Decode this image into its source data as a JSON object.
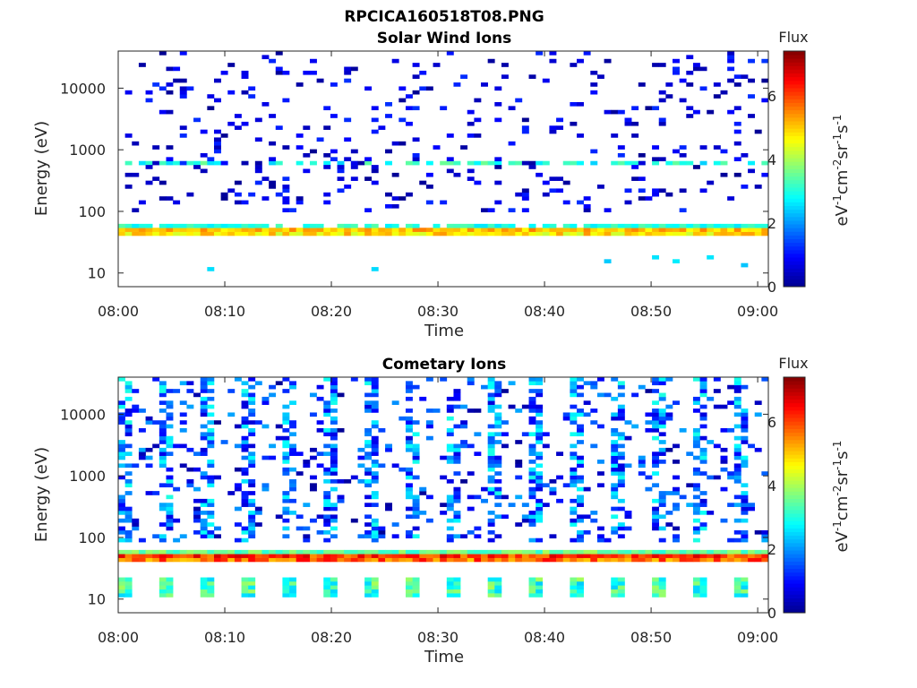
{
  "figure_title": "RPCICA160518T08.PNG",
  "colors": {
    "colormap": [
      "#00008f",
      "#0000ff",
      "#0080ff",
      "#00ffff",
      "#80ff80",
      "#ffff00",
      "#ff8000",
      "#ff0000",
      "#800000"
    ],
    "axis": "#262626",
    "background": "#ffffff"
  },
  "chart_data": [
    {
      "type": "heatmap",
      "title": "Solar Wind Ions",
      "xlabel": "Time",
      "ylabel": "Energy (eV)",
      "x_ticks": [
        "08:00",
        "08:10",
        "08:20",
        "08:30",
        "08:40",
        "08:50",
        "09:00"
      ],
      "x_range": [
        "08:00",
        "09:01"
      ],
      "y_scale": "log",
      "y_range": [
        6,
        40000
      ],
      "y_ticks": [
        10,
        100,
        1000,
        10000
      ],
      "y_tick_labels": [
        "10",
        "100",
        "1000",
        "10000"
      ],
      "colorbar": {
        "title": "Flux",
        "label": "eV-1cm-2sr-1s-1",
        "range": [
          0,
          7.4
        ],
        "ticks": [
          0,
          2,
          4,
          6
        ],
        "tick_labels": [
          "0",
          "2",
          "4",
          "6"
        ]
      },
      "features": [
        {
          "energy_eV": 50,
          "minutes": [
            0,
            61
          ],
          "flux": 4.6,
          "description": "continuous band"
        },
        {
          "energy_eV": 650,
          "minutes": [
            0,
            61
          ],
          "flux": 2.8,
          "description": "intermittent band"
        }
      ],
      "notes": "Sparse low-flux (0-1) pixels between 100 eV and 40000 eV; isolated cyan pixels near 10-20 eV"
    },
    {
      "type": "heatmap",
      "title": "Cometary Ions",
      "xlabel": "Time",
      "ylabel": "Energy (eV)",
      "x_ticks": [
        "08:00",
        "08:10",
        "08:20",
        "08:30",
        "08:40",
        "08:50",
        "09:00"
      ],
      "x_range": [
        "08:00",
        "09:01"
      ],
      "y_scale": "log",
      "y_range": [
        6,
        40000
      ],
      "y_ticks": [
        10,
        100,
        1000,
        10000
      ],
      "y_tick_labels": [
        "10",
        "100",
        "1000",
        "10000"
      ],
      "colorbar": {
        "title": "Flux",
        "label": "eV-1cm-2sr-1s-1",
        "range": [
          0,
          7.4
        ],
        "ticks": [
          0,
          2,
          4,
          6
        ],
        "tick_labels": [
          "0",
          "2",
          "4",
          "6"
        ]
      },
      "features": [
        {
          "energy_eV": 52,
          "minutes": [
            0,
            61
          ],
          "flux": 5.8,
          "description": "strong continuous band"
        },
        {
          "energy_eV": 14,
          "minutes": [
            0,
            61
          ],
          "flux": 3.2,
          "description": "periodic bursts"
        }
      ],
      "notes": "Periodic vertical bursts spanning 100-30000 eV with flux 1-3"
    }
  ]
}
